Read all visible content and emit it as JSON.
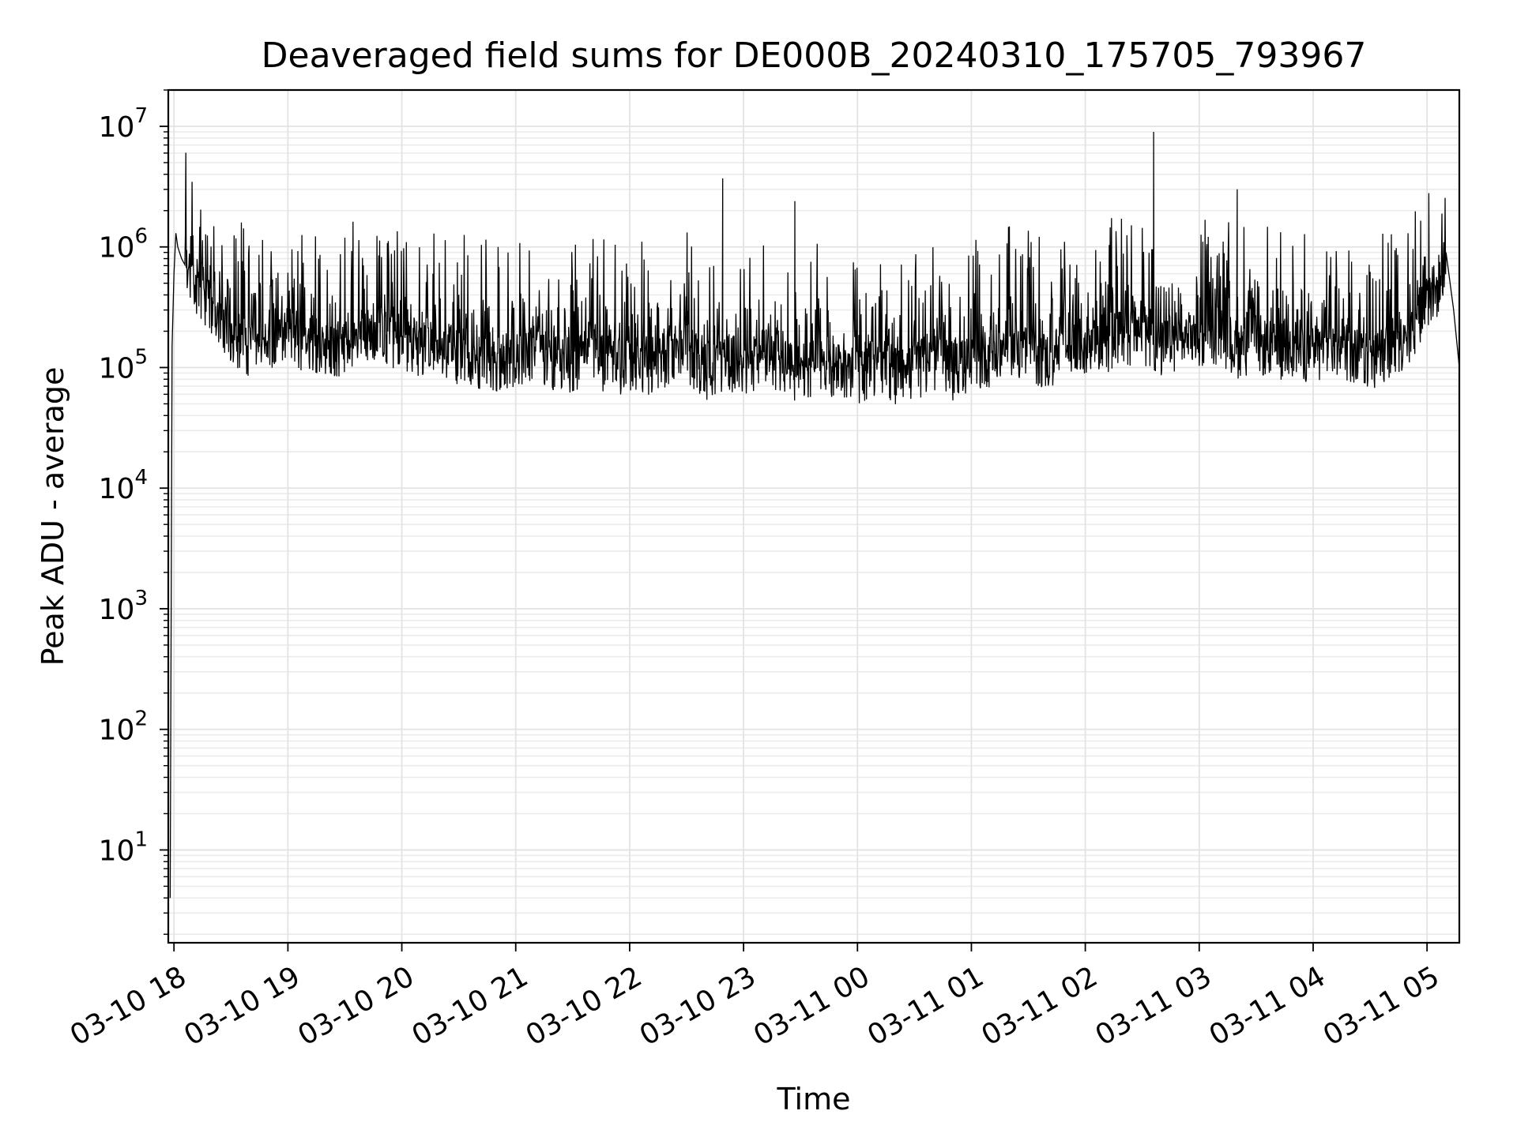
{
  "chart_data": {
    "type": "line",
    "title": "Deaveraged field sums for DE000B_20240310_175705_793967",
    "xlabel": "Time",
    "ylabel": "Peak ADU - average",
    "yscale": "log",
    "ylim": [
      1.7,
      20000000
    ],
    "xlim": [
      "2024-03-10 17:57",
      "2024-03-11 05:17"
    ],
    "grid": true,
    "line_color": "#000000",
    "x_ticks": [
      {
        "t": "2024-03-10 18:00",
        "label": "03-10 18"
      },
      {
        "t": "2024-03-10 19:00",
        "label": "03-10 19"
      },
      {
        "t": "2024-03-10 20:00",
        "label": "03-10 20"
      },
      {
        "t": "2024-03-10 21:00",
        "label": "03-10 21"
      },
      {
        "t": "2024-03-10 22:00",
        "label": "03-10 22"
      },
      {
        "t": "2024-03-10 23:00",
        "label": "03-10 23"
      },
      {
        "t": "2024-03-11 00:00",
        "label": "03-11 00"
      },
      {
        "t": "2024-03-11 01:00",
        "label": "03-11 01"
      },
      {
        "t": "2024-03-11 02:00",
        "label": "03-11 02"
      },
      {
        "t": "2024-03-11 03:00",
        "label": "03-11 03"
      },
      {
        "t": "2024-03-11 04:00",
        "label": "03-11 04"
      },
      {
        "t": "2024-03-11 05:00",
        "label": "03-11 05"
      }
    ],
    "y_ticks": [
      {
        "value": 10,
        "base": "10",
        "exp": "1"
      },
      {
        "value": 100,
        "base": "10",
        "exp": "2"
      },
      {
        "value": 1000,
        "base": "10",
        "exp": "3"
      },
      {
        "value": 10000,
        "base": "10",
        "exp": "4"
      },
      {
        "value": 100000,
        "base": "10",
        "exp": "5"
      },
      {
        "value": 1000000,
        "base": "10",
        "exp": "6"
      },
      {
        "value": 10000000,
        "base": "10",
        "exp": "7"
      }
    ],
    "series": [
      {
        "x": [
          "2024-03-10 17:58",
          "2024-03-10 17:59",
          "2024-03-10 18:00",
          "2024-03-10 18:01",
          "2024-03-10 18:02",
          "2024-03-10 18:04",
          "2024-03-10 18:06",
          "2024-03-10 18:10",
          "2024-03-10 18:20",
          "2024-03-10 18:30",
          "2024-03-10 18:40",
          "2024-03-10 18:50",
          "2024-03-10 19:00",
          "2024-03-10 19:10",
          "2024-03-10 19:20",
          "2024-03-10 19:30",
          "2024-03-10 19:40",
          "2024-03-10 19:50",
          "2024-03-10 20:00",
          "2024-03-10 20:10",
          "2024-03-10 20:20",
          "2024-03-10 20:30",
          "2024-03-10 20:40",
          "2024-03-10 20:50",
          "2024-03-10 21:00",
          "2024-03-10 21:10",
          "2024-03-10 21:20",
          "2024-03-10 21:30",
          "2024-03-10 21:40",
          "2024-03-10 21:50",
          "2024-03-10 22:00",
          "2024-03-10 22:10",
          "2024-03-10 22:20",
          "2024-03-10 22:30",
          "2024-03-10 22:40",
          "2024-03-10 22:50",
          "2024-03-10 23:00",
          "2024-03-10 23:10",
          "2024-03-10 23:20",
          "2024-03-10 23:30",
          "2024-03-10 23:40",
          "2024-03-10 23:50",
          "2024-03-11 00:00",
          "2024-03-11 00:10",
          "2024-03-11 00:20",
          "2024-03-11 00:30",
          "2024-03-11 00:40",
          "2024-03-11 00:50",
          "2024-03-11 01:00",
          "2024-03-11 01:10",
          "2024-03-11 01:20",
          "2024-03-11 01:30",
          "2024-03-11 01:40",
          "2024-03-11 01:50",
          "2024-03-11 02:00",
          "2024-03-11 02:10",
          "2024-03-11 02:20",
          "2024-03-11 02:30",
          "2024-03-11 02:40",
          "2024-03-11 02:50",
          "2024-03-11 03:00",
          "2024-03-11 03:10",
          "2024-03-11 03:20",
          "2024-03-11 03:30",
          "2024-03-11 03:40",
          "2024-03-11 03:50",
          "2024-03-11 04:00",
          "2024-03-11 04:10",
          "2024-03-11 04:20",
          "2024-03-11 04:30",
          "2024-03-11 04:40",
          "2024-03-11 04:50",
          "2024-03-11 05:00",
          "2024-03-11 05:05",
          "2024-03-11 05:10",
          "2024-03-11 05:14",
          "2024-03-11 05:17"
        ],
        "y": [
          4,
          150000,
          600000,
          1300000,
          1000000,
          800000,
          700000,
          550000,
          350000,
          200000,
          150000,
          180000,
          200000,
          170000,
          160000,
          150000,
          180000,
          200000,
          170000,
          140000,
          150000,
          130000,
          120000,
          110000,
          130000,
          150000,
          120000,
          110000,
          150000,
          100000,
          120000,
          110000,
          130000,
          140000,
          100000,
          120000,
          100000,
          130000,
          110000,
          90000,
          120000,
          100000,
          90000,
          110000,
          90000,
          100000,
          120000,
          100000,
          110000,
          130000,
          150000,
          140000,
          120000,
          150000,
          160000,
          170000,
          180000,
          200000,
          150000,
          170000,
          180000,
          200000,
          150000,
          170000,
          140000,
          160000,
          130000,
          150000,
          140000,
          120000,
          150000,
          180000,
          400000,
          450000,
          900000,
          300000,
          100000
        ]
      }
    ]
  }
}
